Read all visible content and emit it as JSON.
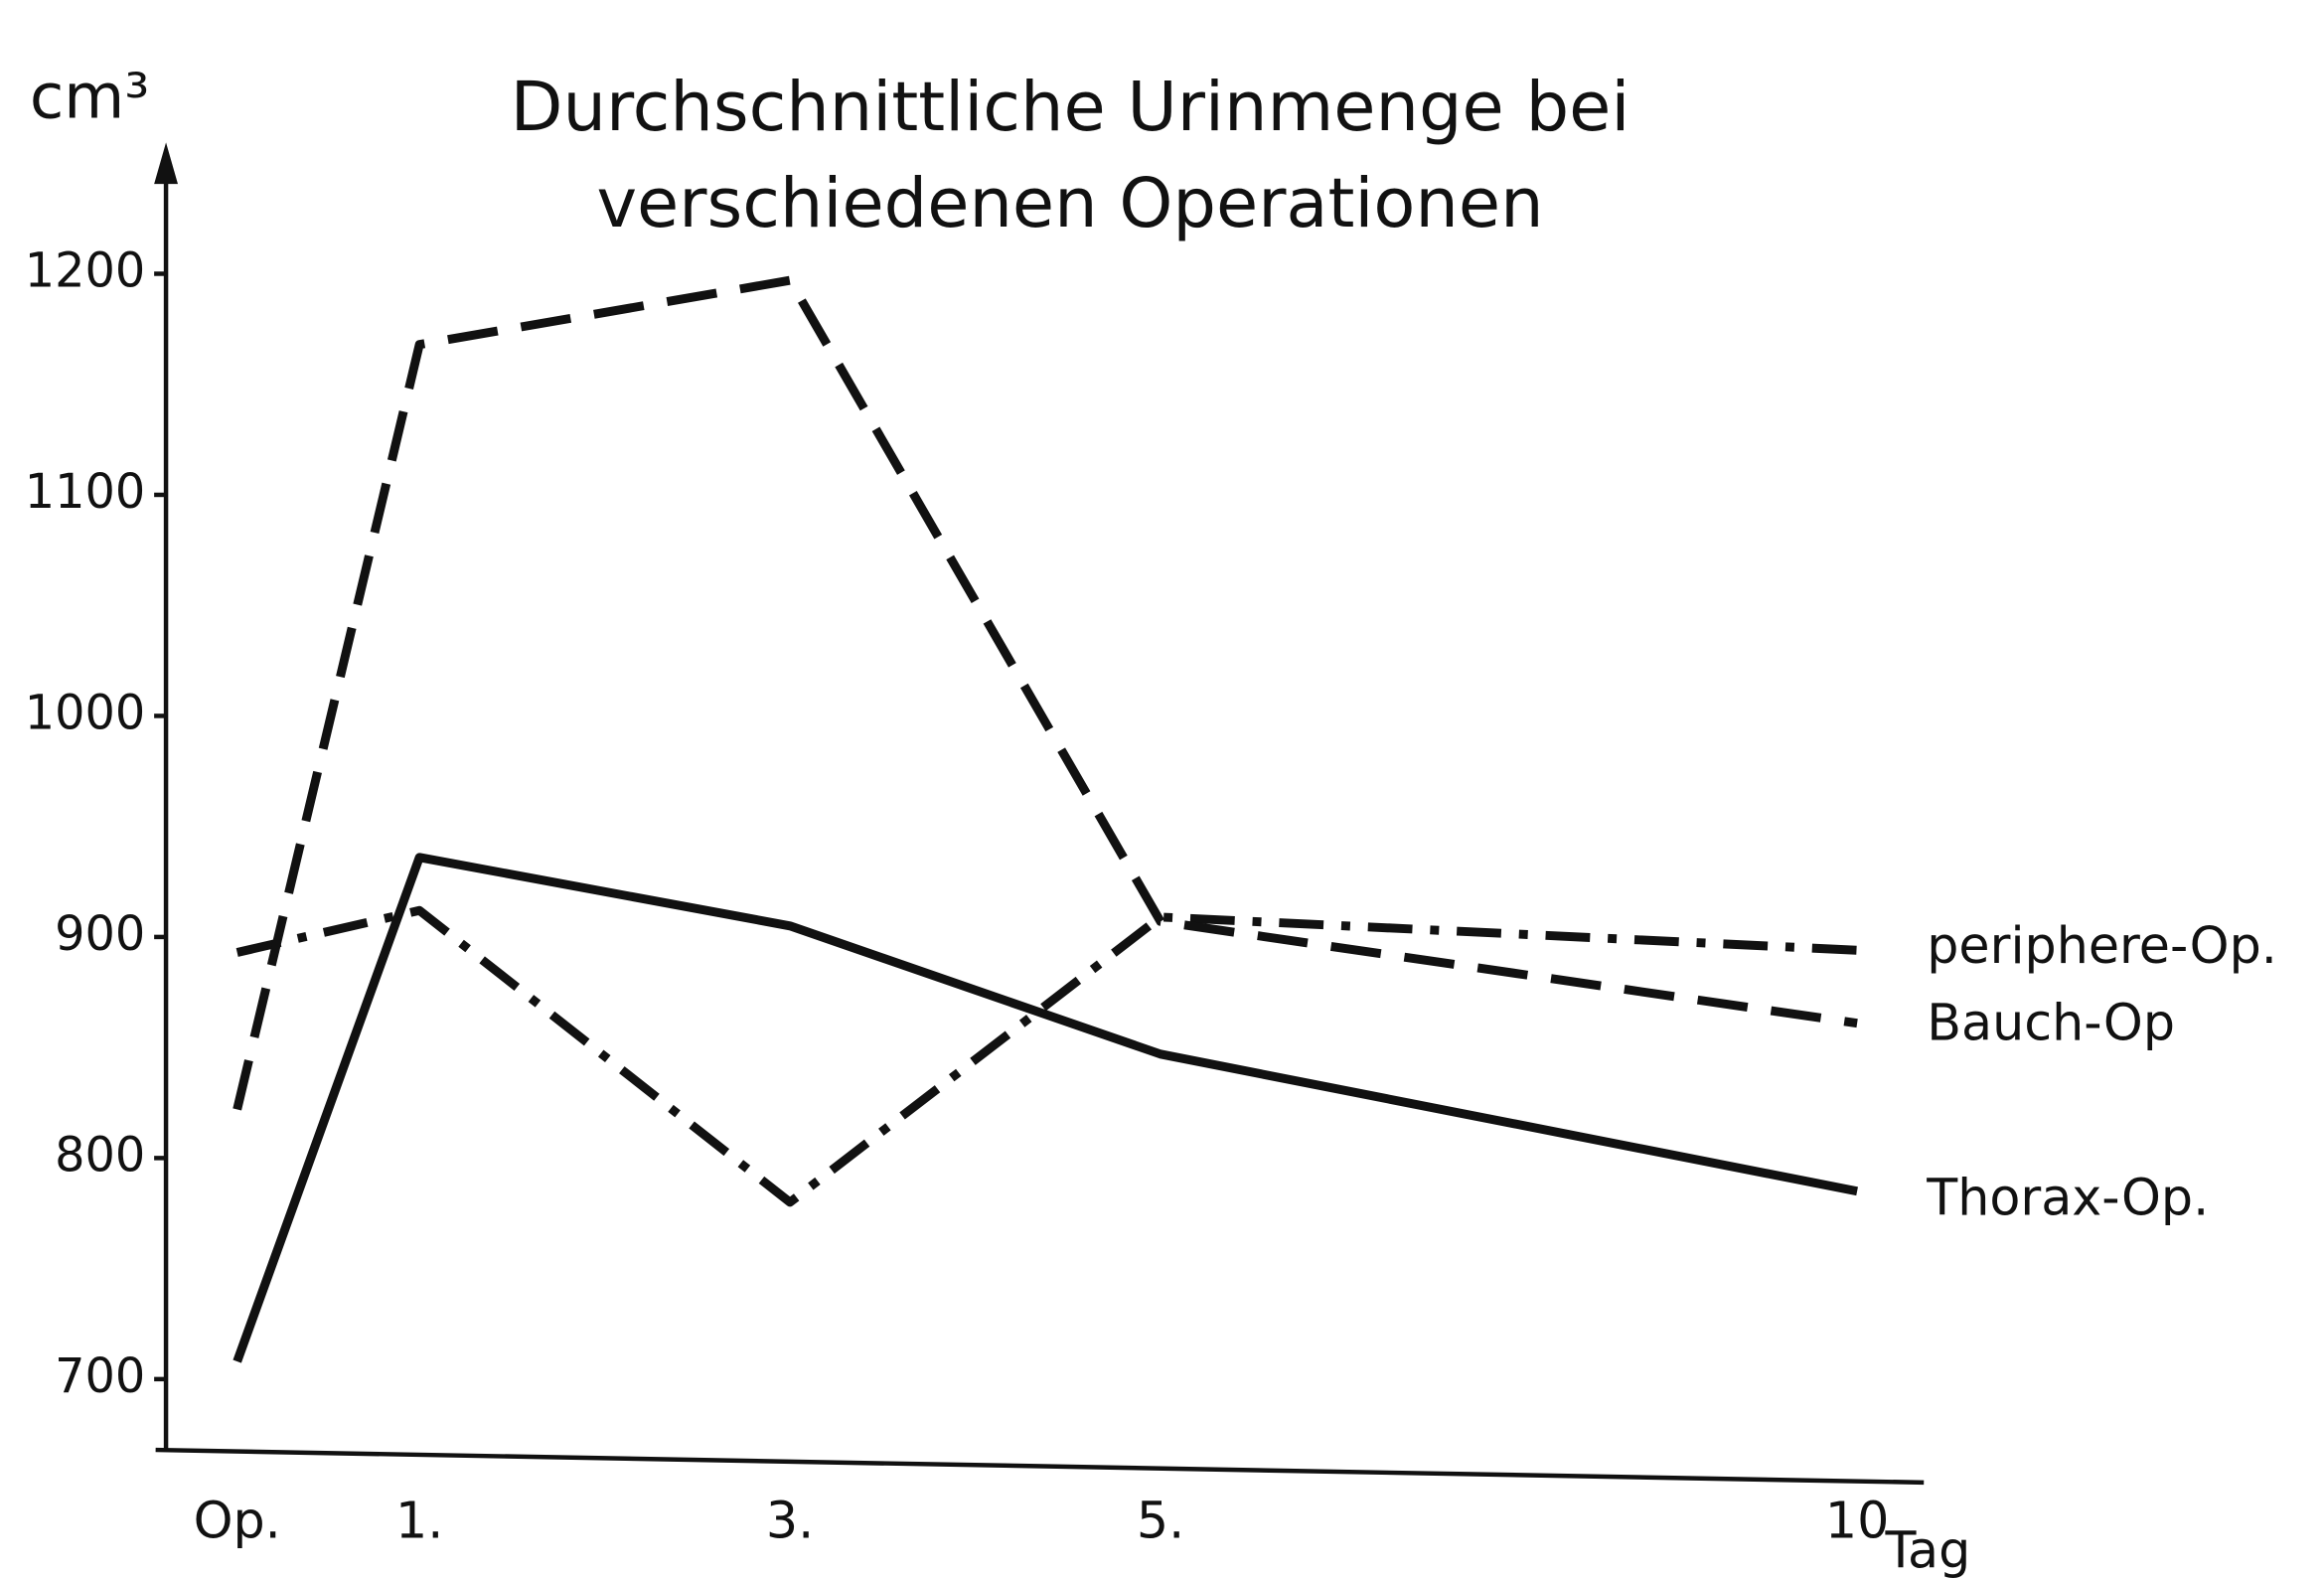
{
  "chart_data": {
    "type": "line",
    "title": [
      "Durchschnittliche Urinmenge bei",
      "verschiedenen Operationen"
    ],
    "y_label": "cm³",
    "x_label": "Tag",
    "categories": [
      "Op.",
      "1.",
      "3.",
      "5.",
      "10"
    ],
    "series": [
      {
        "name": "periphere-Op.",
        "color": "#111111",
        "dash": "dashdot",
        "values": [
          893,
          912,
          780,
          909,
          894
        ]
      },
      {
        "name": "Bauch-Op",
        "color": "#111111",
        "dash": "dashed",
        "values": [
          822,
          1168,
          1197,
          907,
          861
        ]
      },
      {
        "name": "Thorax-Op.",
        "color": "#111111",
        "dash": "solid",
        "values": [
          708,
          936,
          905,
          847,
          785
        ]
      }
    ],
    "ylim": [
      668,
      1250
    ],
    "yticks": [
      700,
      800,
      900,
      1000,
      1100,
      1200
    ],
    "grid": false
  }
}
